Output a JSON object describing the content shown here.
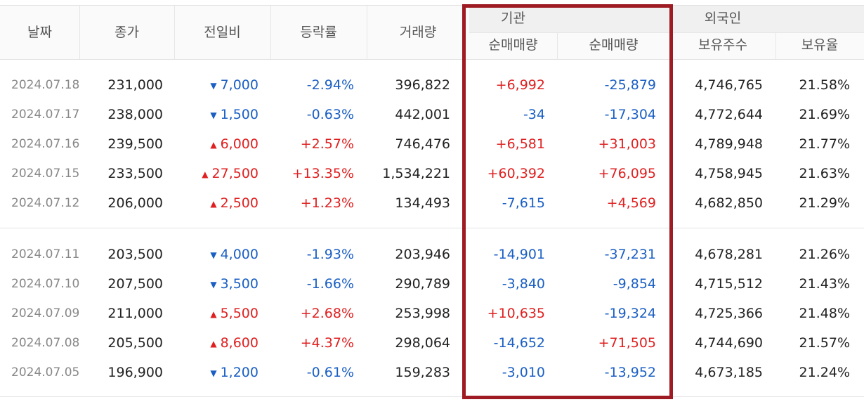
{
  "header": {
    "date": "날짜",
    "close": "종가",
    "change": "전일비",
    "rate": "등락률",
    "volume": "거래량",
    "institution": "기관",
    "inst_net": "순매매량",
    "foreign": "외국인",
    "foreign_net": "순매매량",
    "holdings": "보유주수",
    "ratio": "보유율"
  },
  "colors": {
    "up": "#e02020",
    "down": "#1a5fc4",
    "highlight_border": "#9e1b23"
  },
  "rows": [
    {
      "date": "2024.07.18",
      "close": "231,000",
      "dir": "down",
      "arrow": "▼",
      "change": "7,000",
      "rate": "-2.94%",
      "volume": "396,822",
      "inst": "+6,992",
      "foreign": "-25,879",
      "holdings": "4,746,765",
      "ratio": "21.58%"
    },
    {
      "date": "2024.07.17",
      "close": "238,000",
      "dir": "down",
      "arrow": "▼",
      "change": "1,500",
      "rate": "-0.63%",
      "volume": "442,001",
      "inst": "-34",
      "foreign": "-17,304",
      "holdings": "4,772,644",
      "ratio": "21.69%"
    },
    {
      "date": "2024.07.16",
      "close": "239,500",
      "dir": "up",
      "arrow": "▲",
      "change": "6,000",
      "rate": "+2.57%",
      "volume": "746,476",
      "inst": "+6,581",
      "foreign": "+31,003",
      "holdings": "4,789,948",
      "ratio": "21.77%"
    },
    {
      "date": "2024.07.15",
      "close": "233,500",
      "dir": "up",
      "arrow": "▲",
      "change": "27,500",
      "rate": "+13.35%",
      "volume": "1,534,221",
      "inst": "+60,392",
      "foreign": "+76,095",
      "holdings": "4,758,945",
      "ratio": "21.63%"
    },
    {
      "date": "2024.07.12",
      "close": "206,000",
      "dir": "up",
      "arrow": "▲",
      "change": "2,500",
      "rate": "+1.23%",
      "volume": "134,493",
      "inst": "-7,615",
      "foreign": "+4,569",
      "holdings": "4,682,850",
      "ratio": "21.29%"
    },
    {
      "date": "2024.07.11",
      "close": "203,500",
      "dir": "down",
      "arrow": "▼",
      "change": "4,000",
      "rate": "-1.93%",
      "volume": "203,946",
      "inst": "-14,901",
      "foreign": "-37,231",
      "holdings": "4,678,281",
      "ratio": "21.26%"
    },
    {
      "date": "2024.07.10",
      "close": "207,500",
      "dir": "down",
      "arrow": "▼",
      "change": "3,500",
      "rate": "-1.66%",
      "volume": "290,789",
      "inst": "-3,840",
      "foreign": "-9,854",
      "holdings": "4,715,512",
      "ratio": "21.43%"
    },
    {
      "date": "2024.07.09",
      "close": "211,000",
      "dir": "up",
      "arrow": "▲",
      "change": "5,500",
      "rate": "+2.68%",
      "volume": "253,998",
      "inst": "+10,635",
      "foreign": "-19,324",
      "holdings": "4,725,366",
      "ratio": "21.48%"
    },
    {
      "date": "2024.07.08",
      "close": "205,500",
      "dir": "up",
      "arrow": "▲",
      "change": "8,600",
      "rate": "+4.37%",
      "volume": "298,064",
      "inst": "-14,652",
      "foreign": "+71,505",
      "holdings": "4,744,690",
      "ratio": "21.57%"
    },
    {
      "date": "2024.07.05",
      "close": "196,900",
      "dir": "down",
      "arrow": "▼",
      "change": "1,200",
      "rate": "-0.61%",
      "volume": "159,283",
      "inst": "-3,010",
      "foreign": "-13,952",
      "holdings": "4,673,185",
      "ratio": "21.24%"
    }
  ]
}
